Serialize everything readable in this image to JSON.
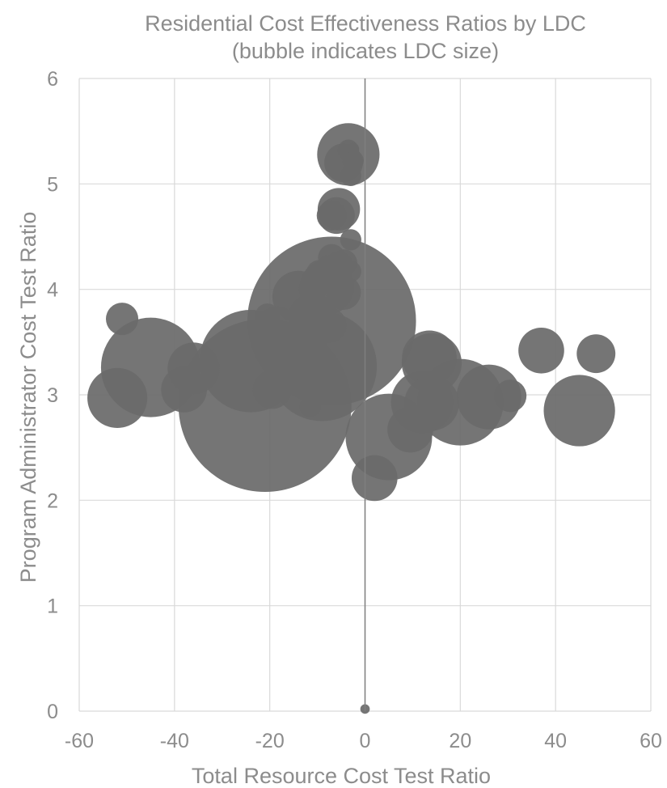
{
  "chart_data": {
    "type": "scatter",
    "bubble": true,
    "title": "Residential Cost Effectiveness Ratios by LDC",
    "subtitle": "(bubble indicates LDC size)",
    "xlabel": "Total Resource Cost Test Ratio",
    "ylabel": "Program Administrator Cost Test Ratio",
    "xlim": [
      -60,
      60
    ],
    "ylim": [
      0,
      6
    ],
    "xticks": [
      "-60",
      "-40",
      "-20",
      "0",
      "20",
      "40",
      "60"
    ],
    "yticks": [
      "0",
      "1",
      "2",
      "3",
      "4",
      "5",
      "6"
    ],
    "grid": true,
    "legend": "none",
    "bubble_color": "#6b6b6b",
    "points": [
      {
        "x": -21,
        "y": 2.9,
        "size": 100
      },
      {
        "x": -7,
        "y": 3.7,
        "size": 95
      },
      {
        "x": -9,
        "y": 3.27,
        "size": 40
      },
      {
        "x": -24,
        "y": 3.32,
        "size": 35
      },
      {
        "x": -45,
        "y": 3.26,
        "size": 33
      },
      {
        "x": 5,
        "y": 2.6,
        "size": 25
      },
      {
        "x": 20,
        "y": 2.93,
        "size": 25
      },
      {
        "x": 45,
        "y": 2.85,
        "size": 17
      },
      {
        "x": 26,
        "y": 2.98,
        "size": 14
      },
      {
        "x": 12,
        "y": 2.93,
        "size": 13
      },
      {
        "x": -3.5,
        "y": 5.28,
        "size": 13
      },
      {
        "x": 14,
        "y": 3.3,
        "size": 12
      },
      {
        "x": -52,
        "y": 2.97,
        "size": 12
      },
      {
        "x": 13.5,
        "y": 3.35,
        "size": 10
      },
      {
        "x": 14,
        "y": 2.92,
        "size": 10
      },
      {
        "x": -8,
        "y": 4.02,
        "size": 10
      },
      {
        "x": -14,
        "y": 3.93,
        "size": 9
      },
      {
        "x": -36,
        "y": 3.25,
        "size": 9
      },
      {
        "x": -11,
        "y": 3.73,
        "size": 8
      },
      {
        "x": -18.5,
        "y": 3.62,
        "size": 7
      },
      {
        "x": -38,
        "y": 3.05,
        "size": 7
      },
      {
        "x": 2,
        "y": 2.21,
        "size": 7
      },
      {
        "x": 9.5,
        "y": 2.67,
        "size": 7
      },
      {
        "x": 37,
        "y": 3.42,
        "size": 7
      },
      {
        "x": -5.5,
        "y": 4.76,
        "size": 6
      },
      {
        "x": 48.5,
        "y": 3.39,
        "size": 5
      },
      {
        "x": -10.5,
        "y": 3.65,
        "size": 6
      },
      {
        "x": -15.5,
        "y": 3.38,
        "size": 5
      },
      {
        "x": -19.5,
        "y": 3.05,
        "size": 5
      },
      {
        "x": -4.5,
        "y": 5.2,
        "size": 5
      },
      {
        "x": -6,
        "y": 4.7,
        "size": 4.5
      },
      {
        "x": -7.5,
        "y": 3.66,
        "size": 4
      },
      {
        "x": -4.5,
        "y": 3.97,
        "size": 4
      },
      {
        "x": 30.5,
        "y": 2.99,
        "size": 3.5
      },
      {
        "x": -51,
        "y": 3.72,
        "size": 3.5
      },
      {
        "x": -7,
        "y": 4.7,
        "size": 3
      },
      {
        "x": -5.5,
        "y": 4.22,
        "size": 3
      },
      {
        "x": -4.5,
        "y": 4.25,
        "size": 2.5
      },
      {
        "x": -9.5,
        "y": 4.15,
        "size": 2.5
      },
      {
        "x": -7,
        "y": 4.3,
        "size": 2.5
      },
      {
        "x": -11,
        "y": 4.0,
        "size": 2.5
      },
      {
        "x": -20.5,
        "y": 3.75,
        "size": 2
      },
      {
        "x": -3.5,
        "y": 5.32,
        "size": 1.5
      },
      {
        "x": -3,
        "y": 5.08,
        "size": 1.5
      },
      {
        "x": -2.5,
        "y": 5.22,
        "size": 1.5
      },
      {
        "x": -3,
        "y": 4.47,
        "size": 1.5
      },
      {
        "x": -3,
        "y": 4.17,
        "size": 1.5
      },
      {
        "x": -11.5,
        "y": 2.89,
        "size": 1.5
      },
      {
        "x": -8,
        "y": 4.24,
        "size": 1
      },
      {
        "x": -2.5,
        "y": 5.33,
        "size": 0.5
      },
      {
        "x": -5,
        "y": 3.05,
        "size": 0.3
      },
      {
        "x": 0,
        "y": 0.02,
        "size": 0.3
      }
    ]
  }
}
